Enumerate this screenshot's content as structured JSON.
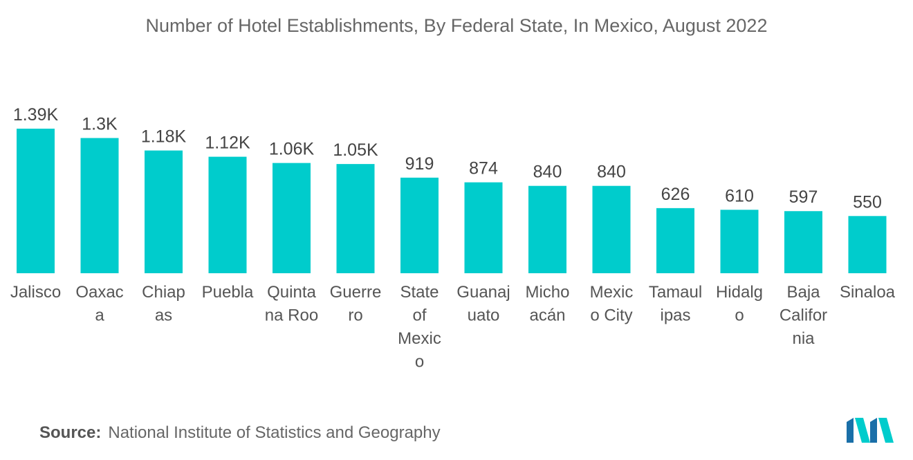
{
  "chart_data": {
    "type": "bar",
    "title": "Number of Hotel Establishments, By Federal State, In Mexico, August 2022",
    "categories": [
      "Jalisco",
      "Oaxaca",
      "Chiapas",
      "Puebla",
      "Quintana Roo",
      "Guerrero",
      "State of Mexico",
      "Guanajuato",
      "Michoacán",
      "Mexico City",
      "Tamaulipas",
      "Hidalgo",
      "Baja California",
      "Sinaloa"
    ],
    "category_lines": [
      [
        "Jalisco"
      ],
      [
        "Oaxac",
        "a"
      ],
      [
        "Chiap",
        "as"
      ],
      [
        "Puebla"
      ],
      [
        "Quinta",
        "na Roo"
      ],
      [
        "Guerre",
        "ro"
      ],
      [
        "State",
        "of",
        "Mexic",
        "o"
      ],
      [
        "Guanaj",
        "uato"
      ],
      [
        "Micho",
        "acán"
      ],
      [
        "Mexic",
        "o City"
      ],
      [
        "Tamaul",
        "ipas"
      ],
      [
        "Hidalg",
        "o"
      ],
      [
        "Baja",
        "Califor",
        "nia"
      ],
      [
        "Sinaloa"
      ]
    ],
    "values": [
      1390,
      1300,
      1180,
      1120,
      1060,
      1050,
      919,
      874,
      840,
      840,
      626,
      610,
      597,
      550
    ],
    "value_labels": [
      "1.39K",
      "1.3K",
      "1.18K",
      "1.12K",
      "1.06K",
      "1.05K",
      "919",
      "874",
      "840",
      "840",
      "626",
      "610",
      "597",
      "550"
    ],
    "xlabel": "",
    "ylabel": "",
    "ylim": [
      0,
      1390
    ],
    "grid": false,
    "bar_color": "#00CCCC"
  },
  "source": {
    "label": "Source:",
    "text": "National Institute of Statistics and Geography"
  },
  "logo": {
    "icon": "mordor-intelligence-logo",
    "colors": [
      "#1a6fa8",
      "#00CCCC"
    ]
  }
}
